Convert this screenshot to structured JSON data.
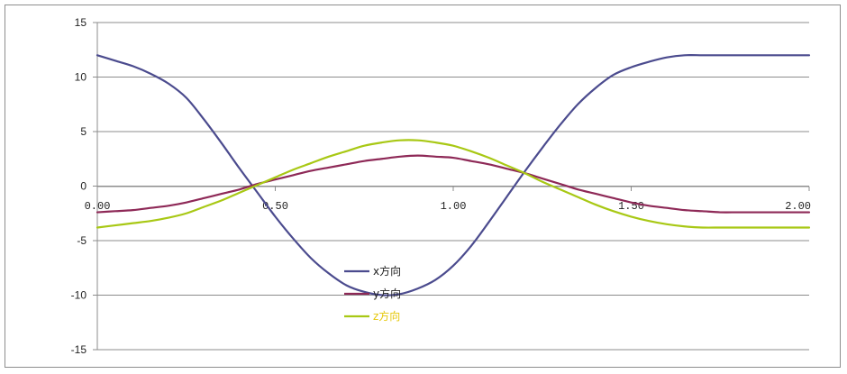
{
  "chart_data": {
    "type": "line",
    "title": "",
    "xlabel": "",
    "ylabel": "",
    "xlim": [
      0,
      2
    ],
    "ylim": [
      -15,
      15
    ],
    "x_ticks": [
      "0.00",
      "0.50",
      "1.00",
      "1.50",
      "2.00"
    ],
    "x_tick_values": [
      0,
      0.5,
      1.0,
      1.5,
      2.0
    ],
    "y_ticks": [
      "15",
      "10",
      "5",
      "0",
      "-5",
      "-10",
      "-15"
    ],
    "y_tick_values": [
      15,
      10,
      5,
      0,
      -5,
      -10,
      -15
    ],
    "grid": "horizontal",
    "legend_position": "center-bottom",
    "x": [
      0,
      0.05,
      0.1,
      0.15,
      0.2,
      0.25,
      0.3,
      0.35,
      0.4,
      0.45,
      0.5,
      0.55,
      0.6,
      0.65,
      0.7,
      0.75,
      0.8,
      0.85,
      0.9,
      0.95,
      1.0,
      1.05,
      1.1,
      1.15,
      1.2,
      1.25,
      1.3,
      1.35,
      1.4,
      1.45,
      1.5,
      1.55,
      1.6,
      1.65,
      1.7,
      1.75,
      1.8,
      1.85,
      1.9,
      1.95,
      2.0
    ],
    "series": [
      {
        "name": "x方向",
        "color": "#4b4b8e",
        "values": [
          12.0,
          11.5,
          11.0,
          10.3,
          9.4,
          8.1,
          6.1,
          3.9,
          1.6,
          -0.6,
          -2.8,
          -4.8,
          -6.6,
          -8.0,
          -9.1,
          -9.7,
          -10.0,
          -9.9,
          -9.4,
          -8.6,
          -7.3,
          -5.5,
          -3.3,
          -1.0,
          1.3,
          3.5,
          5.6,
          7.5,
          9.0,
          10.2,
          10.9,
          11.4,
          11.8,
          12.0,
          12.0,
          12.0,
          12.0,
          12.0,
          12.0,
          12.0,
          12.0
        ]
      },
      {
        "name": "y方向",
        "color": "#8e2957",
        "values": [
          -2.4,
          -2.3,
          -2.2,
          -2.0,
          -1.8,
          -1.5,
          -1.1,
          -0.7,
          -0.3,
          0.2,
          0.6,
          1.0,
          1.4,
          1.7,
          2.0,
          2.3,
          2.5,
          2.7,
          2.8,
          2.7,
          2.6,
          2.3,
          2.0,
          1.6,
          1.2,
          0.7,
          0.2,
          -0.3,
          -0.7,
          -1.1,
          -1.5,
          -1.8,
          -2.0,
          -2.2,
          -2.3,
          -2.4,
          -2.4,
          -2.4,
          -2.4,
          -2.4,
          -2.4
        ]
      },
      {
        "name": "z方向",
        "color": "#a8c814",
        "values": [
          -3.8,
          -3.6,
          -3.4,
          -3.2,
          -2.9,
          -2.5,
          -1.9,
          -1.3,
          -0.6,
          0.1,
          0.8,
          1.5,
          2.1,
          2.7,
          3.2,
          3.7,
          4.0,
          4.2,
          4.2,
          4.0,
          3.7,
          3.2,
          2.6,
          1.9,
          1.2,
          0.4,
          -0.3,
          -1.0,
          -1.7,
          -2.3,
          -2.8,
          -3.2,
          -3.5,
          -3.7,
          -3.8,
          -3.8,
          -3.8,
          -3.8,
          -3.8,
          -3.8,
          -3.8
        ]
      }
    ]
  }
}
